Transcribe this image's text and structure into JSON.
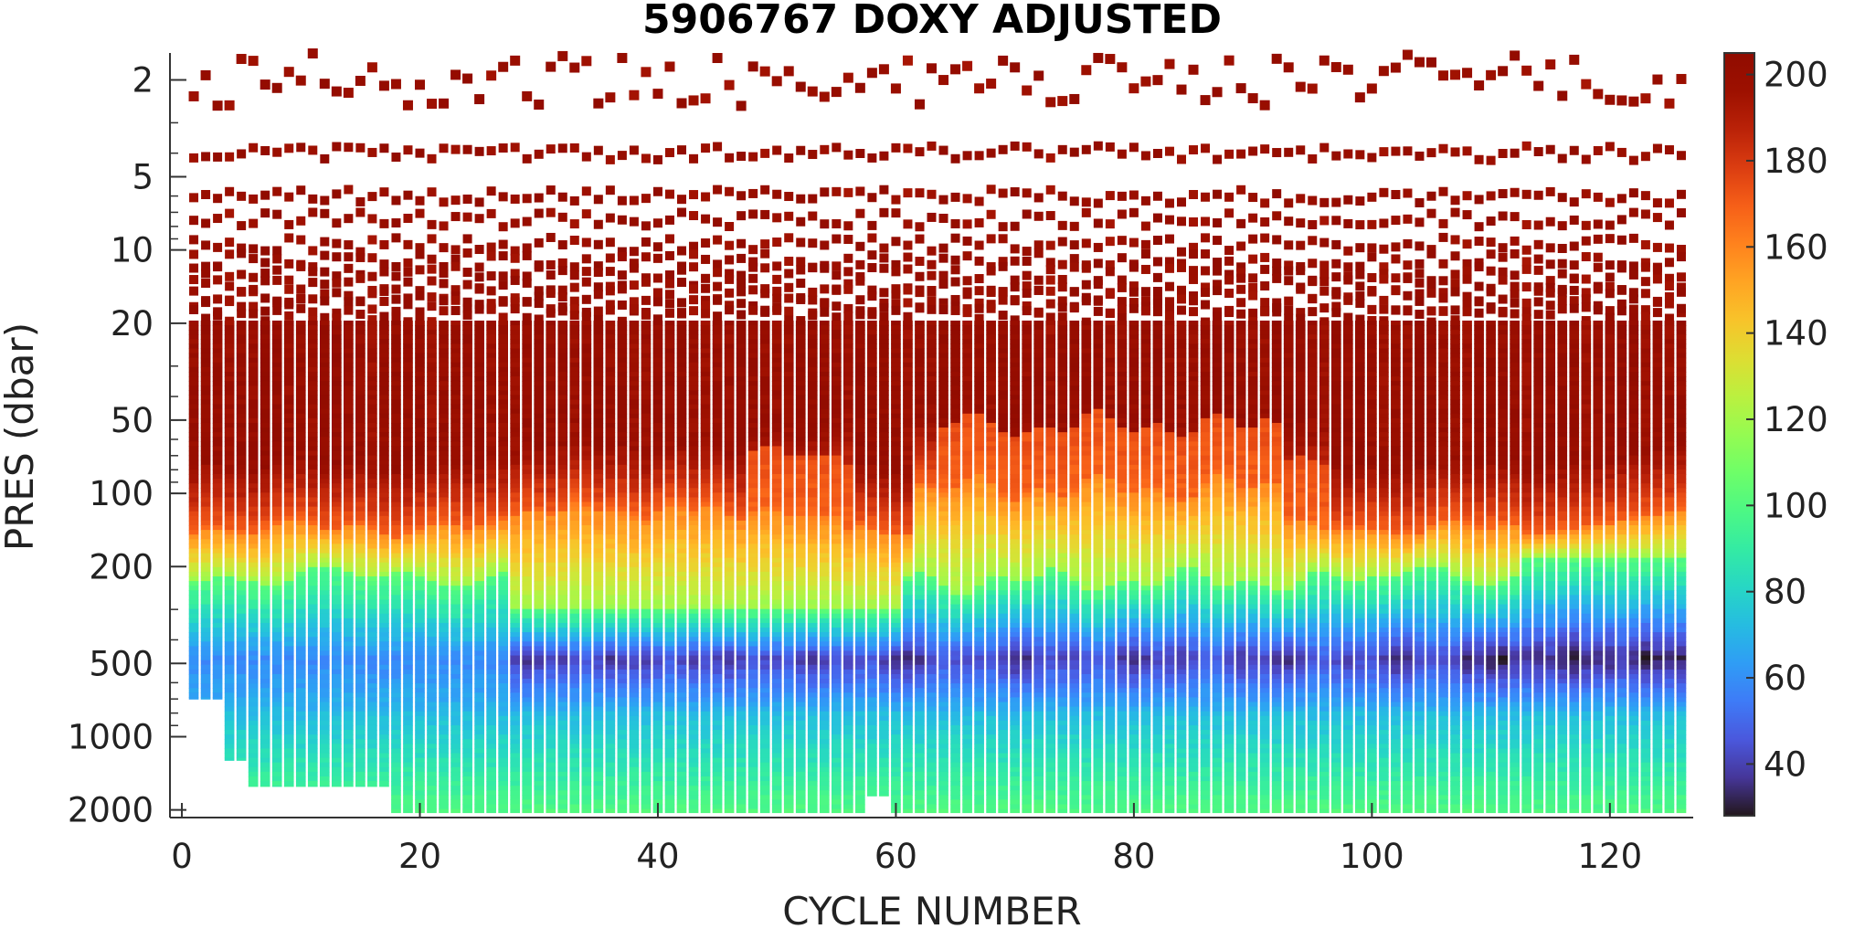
{
  "chart_data": {
    "type": "heatmap",
    "title": "5906767  DOXY ADJUSTED",
    "xlabel": "CYCLE NUMBER",
    "ylabel": "PRES (dbar)",
    "xlim": [
      -1,
      127
    ],
    "ylim": [
      1.55,
      2150
    ],
    "yscale": "log",
    "yreversed": true,
    "grid": false,
    "x_ticks": [
      0,
      20,
      40,
      60,
      80,
      100,
      120
    ],
    "y_ticks": [
      2,
      5,
      10,
      20,
      50,
      100,
      200,
      500,
      1000,
      2000
    ],
    "colorbar": {
      "colormap": "turbo",
      "range": [
        28,
        205
      ],
      "ticks": [
        40,
        60,
        80,
        100,
        120,
        140,
        160,
        180,
        200
      ],
      "placement": "right"
    },
    "profiles": {
      "cycles": [
        1,
        126
      ],
      "max_pressure_by_cycle": [
        {
          "cycles": [
            1,
            3
          ],
          "pres": 700
        },
        {
          "cycles": [
            4,
            5
          ],
          "pres": 1250
        },
        {
          "cycles": [
            6,
            17
          ],
          "pres": 1600
        },
        {
          "cycles": [
            18,
            57
          ],
          "pres": 2050
        },
        {
          "cycles": [
            58,
            59
          ],
          "pres": 1750
        },
        {
          "cycles": [
            60,
            126
          ],
          "pres": 2050
        }
      ],
      "discrete_levels_dbar": [
        2,
        4,
        6,
        7.5,
        9.5,
        11,
        12.5,
        14,
        15.5,
        17,
        18.5
      ],
      "layers": [
        {
          "pres_range": [
            2,
            100
          ],
          "doxy": [
            195,
            205
          ],
          "note_cycles_50_to_95": "mixed layer oxygen drops to ~160-175 below 60 dbar"
        },
        {
          "pres_range": [
            100,
            160
          ],
          "doxy": [
            130,
            175
          ]
        },
        {
          "pres_range": [
            160,
            250
          ],
          "doxy": [
            95,
            140
          ]
        },
        {
          "pres_range": [
            250,
            700
          ],
          "doxy": [
            30,
            75
          ],
          "minimum_core_dbar": 450
        },
        {
          "pres_range": [
            700,
            2050
          ],
          "doxy": [
            75,
            110
          ]
        }
      ]
    }
  }
}
